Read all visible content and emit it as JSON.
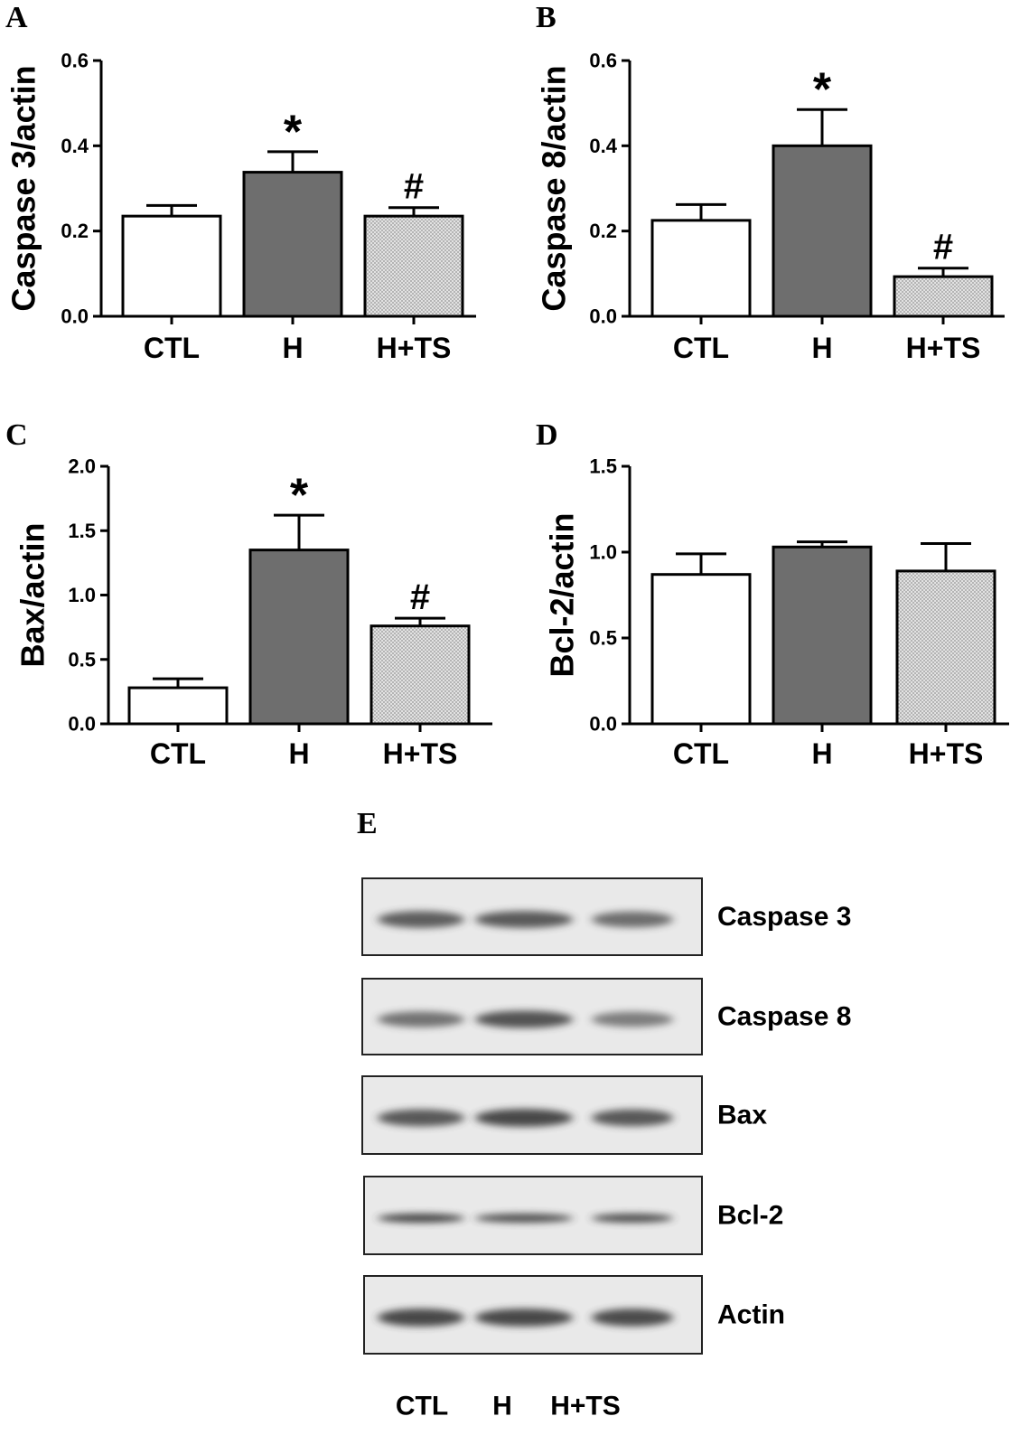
{
  "colors": {
    "CTL": "#ffffff",
    "H": "#6e6e6e",
    "H+TS": "#d6d6d6",
    "axis": "#000000",
    "blot_background": "#e9e9e9",
    "band": "#3a3a3a"
  },
  "chart_data": [
    {
      "panel": "A",
      "type": "bar",
      "ylabel": "Caspase 3/actin",
      "categories": [
        "CTL",
        "H",
        "H+TS"
      ],
      "values": [
        0.235,
        0.338,
        0.235
      ],
      "errors": [
        0.025,
        0.048,
        0.02
      ],
      "annotations": [
        "",
        "*",
        "#"
      ],
      "ylim": [
        0,
        0.6
      ],
      "yticks": [
        "0.0",
        "0.2",
        "0.4",
        "0.6"
      ]
    },
    {
      "panel": "B",
      "type": "bar",
      "ylabel": "Caspase 8/actin",
      "categories": [
        "CTL",
        "H",
        "H+TS"
      ],
      "values": [
        0.225,
        0.4,
        0.093
      ],
      "errors": [
        0.037,
        0.085,
        0.02
      ],
      "annotations": [
        "",
        "*",
        "#"
      ],
      "ylim": [
        0,
        0.6
      ],
      "yticks": [
        "0.0",
        "0.2",
        "0.4",
        "0.6"
      ]
    },
    {
      "panel": "C",
      "type": "bar",
      "ylabel": "Bax/actin",
      "categories": [
        "CTL",
        "H",
        "H+TS"
      ],
      "values": [
        0.28,
        1.35,
        0.76
      ],
      "errors": [
        0.07,
        0.27,
        0.06
      ],
      "annotations": [
        "",
        "*",
        "#"
      ],
      "ylim": [
        0,
        2.0
      ],
      "yticks": [
        "0.0",
        "0.5",
        "1.0",
        "1.5",
        "2.0"
      ]
    },
    {
      "panel": "D",
      "type": "bar",
      "ylabel": "Bcl-2/actin",
      "categories": [
        "CTL",
        "H",
        "H+TS"
      ],
      "values": [
        0.87,
        1.03,
        0.89
      ],
      "errors": [
        0.12,
        0.03,
        0.16
      ],
      "annotations": [
        "",
        "",
        ""
      ],
      "ylim": [
        0,
        1.5
      ],
      "yticks": [
        "0.0",
        "0.5",
        "1.0",
        "1.5"
      ]
    }
  ],
  "blot": {
    "panel": "E",
    "rows": [
      {
        "label": "Caspase 3",
        "intensity": [
          0.75,
          0.78,
          0.6
        ]
      },
      {
        "label": "Caspase 8",
        "intensity": [
          0.55,
          0.85,
          0.45
        ]
      },
      {
        "label": "Bax",
        "intensity": [
          0.8,
          0.95,
          0.8
        ]
      },
      {
        "label": "Bcl-2",
        "intensity": [
          1.0,
          0.9,
          0.9
        ]
      },
      {
        "label": "Actin",
        "intensity": [
          0.95,
          0.95,
          0.92
        ]
      }
    ],
    "lanes": [
      "CTL",
      "H",
      "H+TS"
    ]
  }
}
